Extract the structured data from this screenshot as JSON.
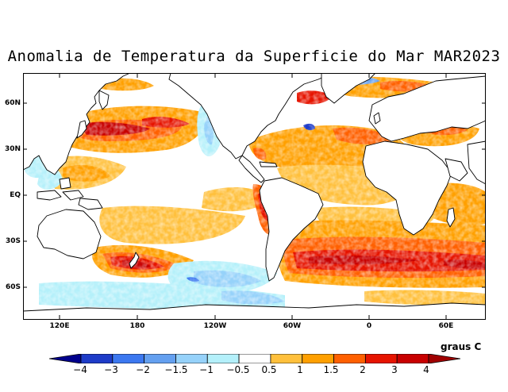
{
  "title": "Anomalia de Temperatura da Superficie do Mar MAR2023",
  "latitude_labels": [
    "60N",
    "30N",
    "EQ",
    "30S",
    "60S"
  ],
  "longitude_labels": [
    "120E",
    "180",
    "120W",
    "60W",
    "0",
    "60E"
  ],
  "colorbar": {
    "units": "graus C",
    "tick_labels": [
      "−4",
      "−3",
      "−2",
      "−1.5",
      "−1",
      "−0.5",
      "0.5",
      "1",
      "1.5",
      "2",
      "3",
      "4"
    ],
    "bins": [
      {
        "from": -5,
        "to": -4,
        "color": "#00008c"
      },
      {
        "from": -4,
        "to": -3,
        "color": "#1e3cc8"
      },
      {
        "from": -3,
        "to": -2,
        "color": "#3c78f0"
      },
      {
        "from": -2,
        "to": -1.5,
        "color": "#64a0f0"
      },
      {
        "from": -1.5,
        "to": -1,
        "color": "#96d2fa"
      },
      {
        "from": -1,
        "to": -0.5,
        "color": "#b4f0fa"
      },
      {
        "from": -0.5,
        "to": 0.5,
        "color": "#ffffff"
      },
      {
        "from": 0.5,
        "to": 1,
        "color": "#ffc03c"
      },
      {
        "from": 1,
        "to": 1.5,
        "color": "#ffa000"
      },
      {
        "from": 1.5,
        "to": 2,
        "color": "#ff6000"
      },
      {
        "from": 2,
        "to": 3,
        "color": "#e61400"
      },
      {
        "from": 3,
        "to": 4,
        "color": "#c80000"
      },
      {
        "from": 4,
        "to": 5,
        "color": "#a00000"
      }
    ]
  },
  "anomaly_regions": [
    {
      "name": "north-pacific-warm",
      "anomaly": 2.5
    },
    {
      "name": "kuroshio-extension",
      "anomaly": 3.5
    },
    {
      "name": "eastern-equatorial-pacific-coast",
      "anomaly": 2.5
    },
    {
      "name": "north-atlantic-warm",
      "anomaly": 1.5
    },
    {
      "name": "south-atlantic-indian-warm-band",
      "anomaly": 2.5
    },
    {
      "name": "south-pacific-new-zealand-warm",
      "anomaly": 3.5
    },
    {
      "name": "southern-ocean-pacific-cold",
      "anomaly": -1.5
    },
    {
      "name": "northeast-pacific-cold",
      "anomaly": -0.8
    },
    {
      "name": "gulf-stream-cold-spot",
      "anomaly": -3.5
    }
  ]
}
